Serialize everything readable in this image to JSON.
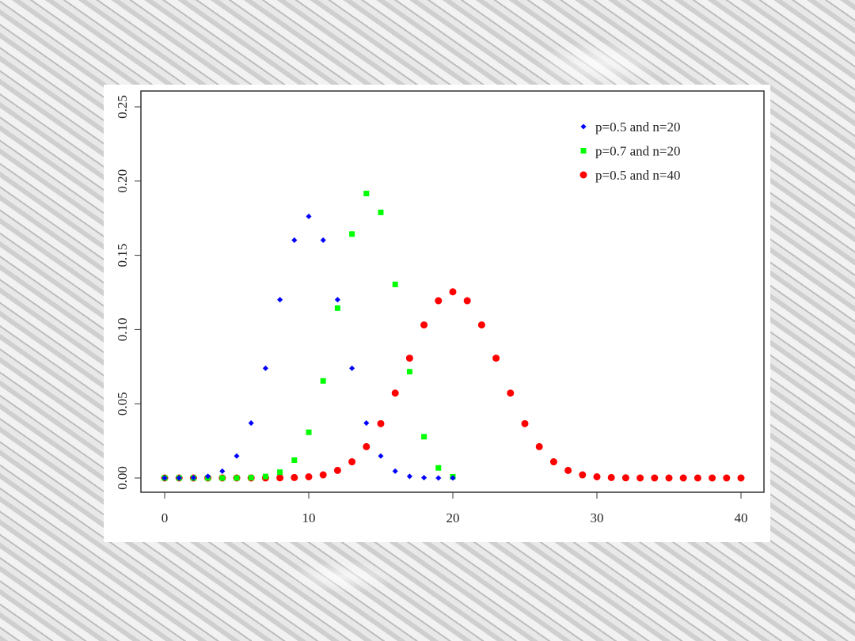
{
  "chart_data": {
    "type": "scatter",
    "title": "",
    "xlabel": "",
    "ylabel": "",
    "xlim": [
      0,
      40
    ],
    "ylim": [
      0,
      0.25
    ],
    "x_ticks": [
      "0",
      "10",
      "20",
      "30",
      "40"
    ],
    "y_ticks": [
      "0.00",
      "0.05",
      "0.10",
      "0.15",
      "0.20",
      "0.25"
    ],
    "legend_position": "top-right",
    "series": [
      {
        "name": "p=0.5 and n=20",
        "color": "#0000ff",
        "marker": "diamond",
        "x": [
          0,
          1,
          2,
          3,
          4,
          5,
          6,
          7,
          8,
          9,
          10,
          11,
          12,
          13,
          14,
          15,
          16,
          17,
          18,
          19,
          20
        ],
        "values": [
          0.0,
          0.0,
          0.0002,
          0.0011,
          0.0046,
          0.0148,
          0.037,
          0.0739,
          0.1201,
          0.1602,
          0.1762,
          0.1602,
          0.1201,
          0.0739,
          0.037,
          0.0148,
          0.0046,
          0.0011,
          0.0002,
          0.0,
          0.0
        ]
      },
      {
        "name": "p=0.7 and n=20",
        "color": "#00ff00",
        "marker": "square",
        "x": [
          0,
          1,
          2,
          3,
          4,
          5,
          6,
          7,
          8,
          9,
          10,
          11,
          12,
          13,
          14,
          15,
          16,
          17,
          18,
          19,
          20
        ],
        "values": [
          0,
          0,
          0,
          0,
          0.0,
          0.0,
          0.0002,
          0.001,
          0.0039,
          0.012,
          0.0308,
          0.0654,
          0.1144,
          0.1643,
          0.1916,
          0.1789,
          0.1304,
          0.0716,
          0.0278,
          0.0068,
          0.0008
        ]
      },
      {
        "name": "p=0.5 and n=40",
        "color": "#ff0000",
        "marker": "circle",
        "x": [
          0,
          1,
          2,
          3,
          4,
          5,
          6,
          7,
          8,
          9,
          10,
          11,
          12,
          13,
          14,
          15,
          16,
          17,
          18,
          19,
          20,
          21,
          22,
          23,
          24,
          25,
          26,
          27,
          28,
          29,
          30,
          31,
          32,
          33,
          34,
          35,
          36,
          37,
          38,
          39,
          40
        ],
        "values": [
          0,
          0,
          0,
          0,
          0,
          0,
          0,
          0,
          0.0001,
          0.0003,
          0.0008,
          0.0021,
          0.0051,
          0.0109,
          0.0211,
          0.0366,
          0.0572,
          0.0807,
          0.1031,
          0.1194,
          0.1254,
          0.1194,
          0.1031,
          0.0807,
          0.0572,
          0.0366,
          0.0211,
          0.0109,
          0.0051,
          0.0021,
          0.0008,
          0.0003,
          0.0001,
          0,
          0,
          0,
          0,
          0,
          0,
          0,
          0
        ]
      }
    ]
  }
}
